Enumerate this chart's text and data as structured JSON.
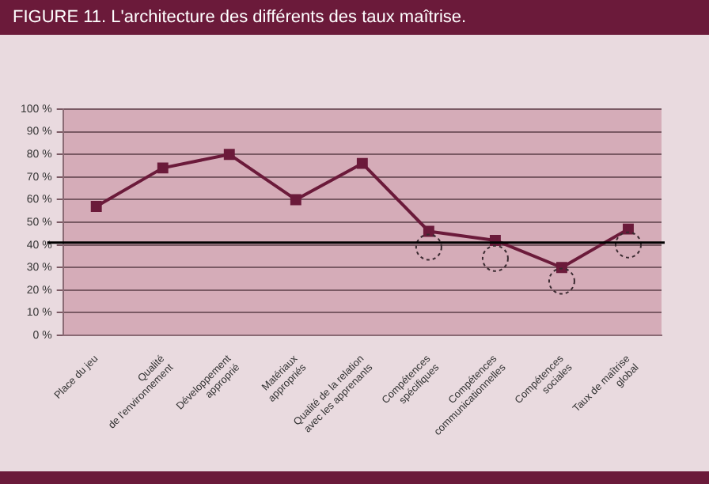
{
  "chart_data": {
    "type": "line",
    "title": "FIGURE 11. L'architecture des différents des taux maîtrise.",
    "categories": [
      "Place du jeu",
      "Qualité\nde l'environnement",
      "Développement\napproprié",
      "Matériaux\nappropriés",
      "Qualité de la relation\navec les apprenants",
      "Compétences\nspécifiques",
      "Compétences\ncommunicationnelles",
      "Compétences\nsociales",
      "Taux de maîtrise\nglobal"
    ],
    "series": [
      {
        "color": "#6b1a3a",
        "marker": "square",
        "values": [
          57,
          74,
          80,
          60,
          76,
          46,
          42,
          30,
          47
        ]
      },
      {
        "type": "scatter",
        "color": "#3a2a30",
        "marker": "circle",
        "line_style": "dotted",
        "values": [
          null,
          null,
          null,
          null,
          null,
          39,
          34,
          24,
          40
        ]
      }
    ],
    "ylim": [
      0,
      100
    ],
    "yticks": [
      {
        "value": 0,
        "label": "0 %"
      },
      {
        "value": 10,
        "label": "10 %"
      },
      {
        "value": 20,
        "label": "20 %"
      },
      {
        "value": 30,
        "label": "30 %"
      },
      {
        "value": 40,
        "label": "40 %"
      },
      {
        "value": 50,
        "label": "50 %"
      },
      {
        "value": 60,
        "label": "60 %"
      },
      {
        "value": 70,
        "label": "70 %"
      },
      {
        "value": 80,
        "label": "80 %"
      },
      {
        "value": 90,
        "label": "90 %"
      },
      {
        "value": 100,
        "label": "100 %"
      }
    ],
    "grid": "y",
    "legend": false,
    "ref_lines": [
      {
        "axis": "y",
        "value": 41,
        "color": "#000000"
      }
    ]
  }
}
